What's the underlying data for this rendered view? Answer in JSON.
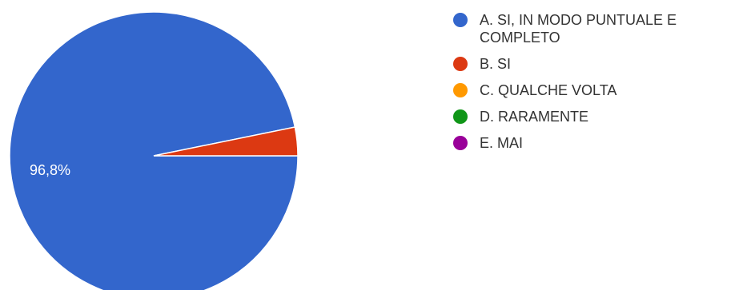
{
  "chart_data": {
    "type": "pie",
    "slices": [
      {
        "label": "A. SI, IN MODO PUNTUALE E COMPLETO",
        "value": 96.8,
        "color": "#3366cc"
      },
      {
        "label": "B. SI",
        "value": 3.2,
        "color": "#dc3912"
      },
      {
        "label": "C. QUALCHE VOLTA",
        "value": 0,
        "color": "#ff9900"
      },
      {
        "label": "D. RARAMENTE",
        "value": 0,
        "color": "#109618"
      },
      {
        "label": "E. MAI",
        "value": 0,
        "color": "#990099"
      }
    ],
    "data_labels": [
      "96,8%"
    ],
    "legend_position": "right"
  }
}
